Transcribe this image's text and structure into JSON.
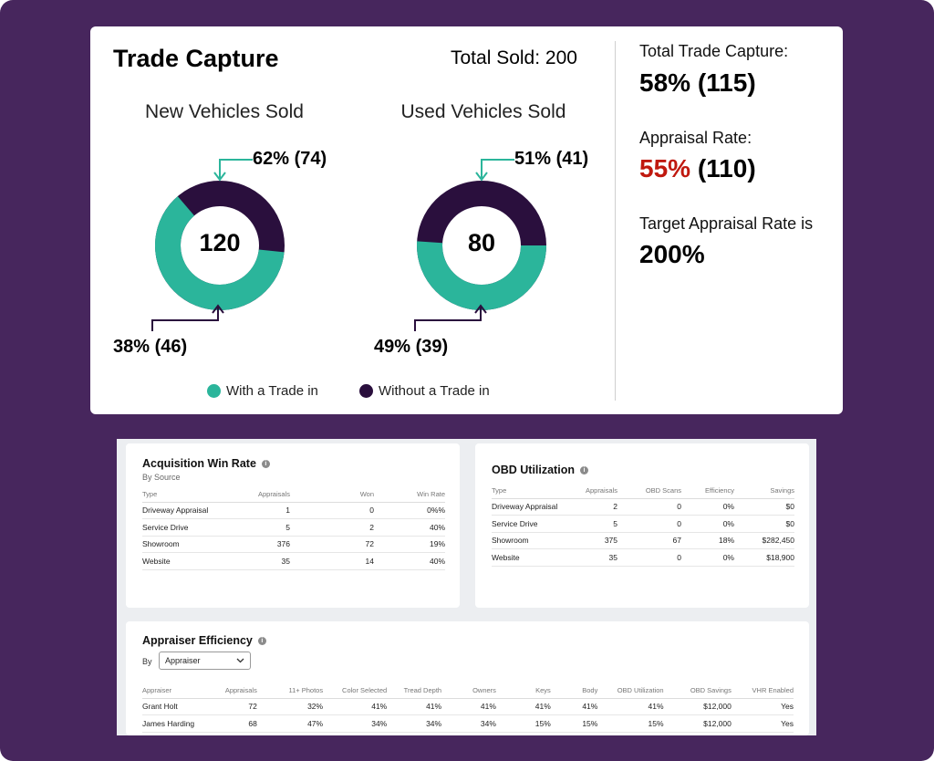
{
  "trade_capture": {
    "title": "Trade Capture",
    "total_sold": "Total Sold: 200",
    "new": {
      "title": "New Vehicles Sold",
      "center": "120",
      "with_label": "62% (74)",
      "without_label": "38% (46)",
      "with_fraction": 0.62
    },
    "used": {
      "title": "Used Vehicles Sold",
      "center": "80",
      "with_label": "51% (41)",
      "without_label": "49% (39)",
      "with_fraction": 0.51
    },
    "legend": {
      "with": "With a Trade in",
      "without": "Without a Trade in"
    },
    "colors": {
      "with": "#2bb59b",
      "without": "#2a0f3d",
      "alert": "#c0190f",
      "frame": "#47265d"
    }
  },
  "summary": {
    "total_capture_label": "Total Trade Capture:",
    "total_capture_value": "58% (115)",
    "appraisal_label": "Appraisal Rate:",
    "appraisal_pct": "55%",
    "appraisal_count": "(110)",
    "target_label": "Target Appraisal Rate is",
    "target_value": "200%"
  },
  "acquisition": {
    "title": "Acquisition Win Rate",
    "subtitle": "By Source",
    "columns": [
      "Type",
      "Appraisals",
      "Won",
      "Win Rate"
    ],
    "rows": [
      [
        "Driveway Appraisal",
        "1",
        "0",
        "0%%"
      ],
      [
        "Service Drive",
        "5",
        "2",
        "40%"
      ],
      [
        "Showroom",
        "376",
        "72",
        "19%"
      ],
      [
        "Website",
        "35",
        "14",
        "40%"
      ]
    ]
  },
  "obd": {
    "title": "OBD Utilization",
    "columns": [
      "Type",
      "Appraisals",
      "OBD Scans",
      "Efficiency",
      "Savings"
    ],
    "rows": [
      [
        "Driveway Appraisal",
        "2",
        "0",
        "0%",
        "$0"
      ],
      [
        "Service Drive",
        "5",
        "0",
        "0%",
        "$0"
      ],
      [
        "Showroom",
        "375",
        "67",
        "18%",
        "$282,450"
      ],
      [
        "Website",
        "35",
        "0",
        "0%",
        "$18,900"
      ]
    ]
  },
  "appraiser": {
    "title": "Appraiser Efficiency",
    "by_label": "By",
    "select_value": "Appraiser",
    "columns": [
      "Appraiser",
      "Appraisals",
      "11+ Photos",
      "Color Selected",
      "Tread Depth",
      "Owners",
      "Keys",
      "Body",
      "OBD Utilization",
      "OBD Savings",
      "VHR Enabled"
    ],
    "rows": [
      [
        "Grant Holt",
        "72",
        "32%",
        "41%",
        "41%",
        "41%",
        "41%",
        "41%",
        "41%",
        "$12,000",
        "Yes"
      ],
      [
        "James Harding",
        "68",
        "47%",
        "34%",
        "34%",
        "34%",
        "15%",
        "15%",
        "15%",
        "$12,000",
        "Yes"
      ]
    ]
  }
}
